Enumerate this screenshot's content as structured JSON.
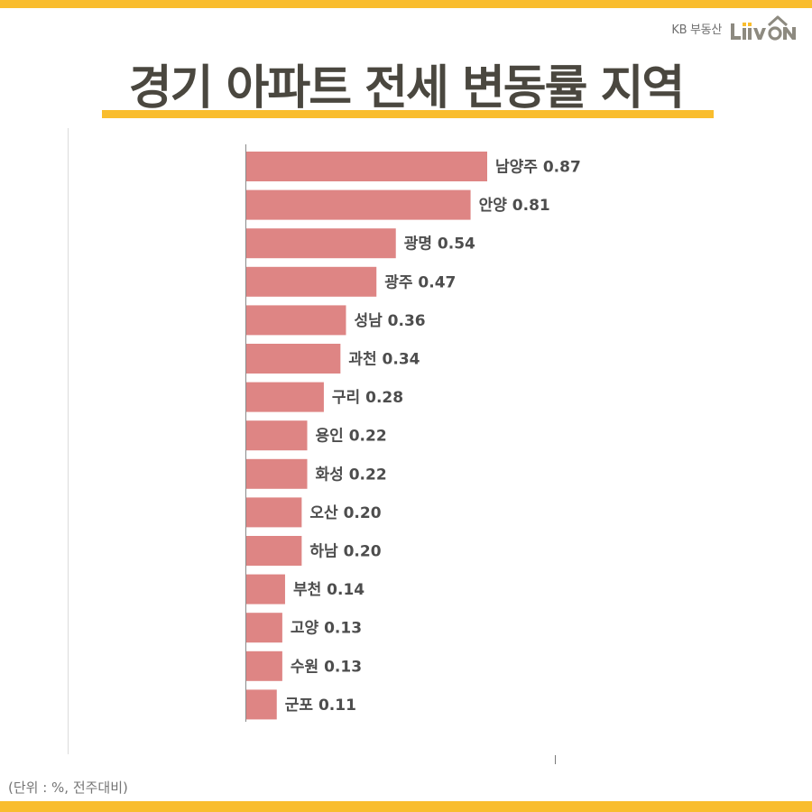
{
  "brand": {
    "company": "KB 부동산",
    "logo_text": "Liiv ON"
  },
  "colors": {
    "accent": "#f9bd2e",
    "bar": "#de8584",
    "title": "#4a473f"
  },
  "footnote": "(단위 : %, 전주대비)",
  "chart_data": {
    "type": "bar",
    "orientation": "horizontal",
    "title": "경기 아파트 전세 변동률 지역",
    "unit": "%",
    "categories": [
      "남양주",
      "안양",
      "광명",
      "광주",
      "성남",
      "과천",
      "구리",
      "용인",
      "화성",
      "오산",
      "하남",
      "부천",
      "고양",
      "수원",
      "군포"
    ],
    "values": [
      0.87,
      0.81,
      0.54,
      0.47,
      0.36,
      0.34,
      0.28,
      0.22,
      0.22,
      0.2,
      0.2,
      0.14,
      0.13,
      0.13,
      0.11
    ],
    "value_labels": [
      "0.87",
      "0.81",
      "0.54",
      "0.47",
      "0.36",
      "0.34",
      "0.28",
      "0.22",
      "0.22",
      "0.20",
      "0.20",
      "0.14",
      "0.13",
      "0.13",
      "0.11"
    ],
    "xlabel": "",
    "ylabel": "",
    "xlim": [
      0,
      1.1
    ],
    "grid": false,
    "legend": "none"
  }
}
